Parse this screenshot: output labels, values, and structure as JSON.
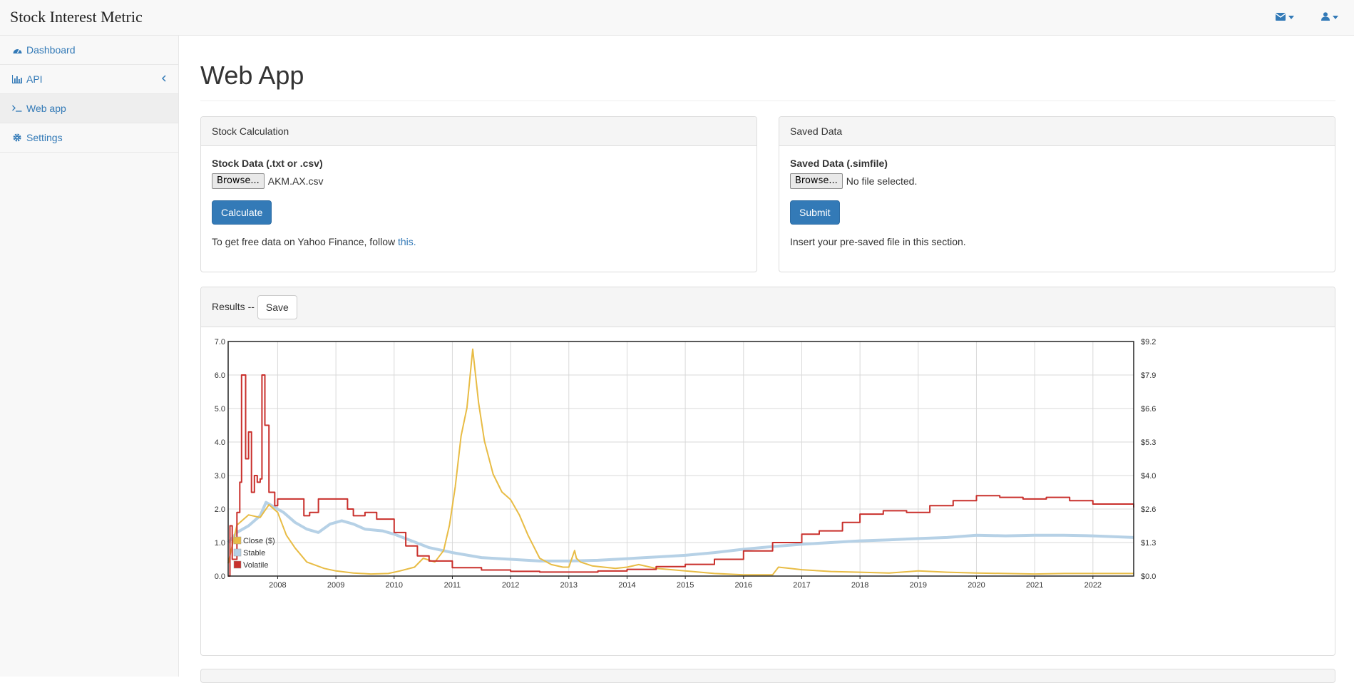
{
  "app": {
    "brand": "Stock Interest Metric"
  },
  "navbar": {
    "mail_icon": "envelope-icon",
    "user_icon": "user-icon"
  },
  "sidebar": {
    "items": [
      {
        "label": "Dashboard",
        "icon": "dashboard-icon"
      },
      {
        "label": "API",
        "icon": "bar-chart-icon"
      },
      {
        "label": "Web app",
        "icon": "terminal-icon"
      },
      {
        "label": "Settings",
        "icon": "gear-icon"
      }
    ]
  },
  "page": {
    "title": "Web App"
  },
  "stock_panel": {
    "heading": "Stock Calculation",
    "field_label": "Stock Data (.txt or .csv)",
    "browse_label": "Browse...",
    "file_name": "AKM.AX.csv",
    "button_label": "Calculate",
    "help_text": "To get free data on Yahoo Finance, follow ",
    "help_link": "this."
  },
  "saved_panel": {
    "heading": "Saved Data",
    "field_label": "Saved Data (.simfile)",
    "browse_label": "Browse...",
    "file_name": "No file selected.",
    "button_label": "Submit",
    "help_text": "Insert your pre-saved file in this section."
  },
  "results": {
    "heading": "Results --",
    "save_label": "Save"
  },
  "colors": {
    "close": "#e8bc45",
    "stable": "#b6d1e6",
    "volatile": "#c9302c",
    "link": "#337ab7"
  },
  "chart_data": {
    "type": "line",
    "x_ticks": [
      "2008",
      "2009",
      "2010",
      "2011",
      "2012",
      "2013",
      "2014",
      "2015",
      "2016",
      "2017",
      "2018",
      "2019",
      "2020",
      "2021",
      "2022"
    ],
    "xlim": [
      2007.15,
      2022.7
    ],
    "y_left_ticks": [
      "0.0",
      "1.0",
      "2.0",
      "3.0",
      "4.0",
      "5.0",
      "6.0",
      "7.0"
    ],
    "ylim_left": [
      0,
      7
    ],
    "y_right_ticks": [
      "$0.0",
      "$1.3",
      "$2.6",
      "$4.0",
      "$5.3",
      "$6.6",
      "$7.9",
      "$9.2"
    ],
    "ylim_right": [
      0,
      9.2
    ],
    "grid": true,
    "legend_position": "bottom-left",
    "series": [
      {
        "name": "Close ($)",
        "axis": "right",
        "x": [
          2007.15,
          2007.3,
          2007.5,
          2007.7,
          2007.85,
          2008.0,
          2008.15,
          2008.3,
          2008.5,
          2008.8,
          2009.0,
          2009.3,
          2009.6,
          2009.9,
          2010.1,
          2010.35,
          2010.5,
          2010.7,
          2010.85,
          2010.95,
          2011.05,
          2011.15,
          2011.25,
          2011.35,
          2011.45,
          2011.55,
          2011.7,
          2011.85,
          2012.0,
          2012.15,
          2012.3,
          2012.5,
          2012.7,
          2012.9,
          2013.0,
          2013.1,
          2013.13,
          2013.2,
          2013.4,
          2013.6,
          2013.8,
          2014.0,
          2014.2,
          2014.5,
          2015.0,
          2015.5,
          2016.0,
          2016.5,
          2016.6,
          2016.8,
          2017.0,
          2017.5,
          2018.0,
          2018.5,
          2019.0,
          2019.5,
          2020.0,
          2020.5,
          2021.0,
          2021.5,
          2022.0,
          2022.7
        ],
        "y": [
          0.5,
          2.0,
          2.4,
          2.3,
          2.8,
          2.5,
          1.6,
          1.1,
          0.55,
          0.3,
          0.2,
          0.12,
          0.08,
          0.1,
          0.2,
          0.35,
          0.7,
          0.55,
          1.0,
          2.0,
          3.5,
          5.5,
          6.6,
          8.9,
          6.8,
          5.3,
          4.0,
          3.3,
          3.0,
          2.4,
          1.6,
          0.7,
          0.45,
          0.35,
          0.35,
          1.0,
          0.7,
          0.55,
          0.4,
          0.35,
          0.3,
          0.35,
          0.45,
          0.3,
          0.2,
          0.1,
          0.05,
          0.05,
          0.35,
          0.3,
          0.25,
          0.18,
          0.15,
          0.12,
          0.2,
          0.15,
          0.12,
          0.1,
          0.08,
          0.1,
          0.1,
          0.1
        ]
      },
      {
        "name": "Stable",
        "axis": "left",
        "x": [
          2007.15,
          2007.3,
          2007.5,
          2007.7,
          2007.8,
          2007.9,
          2008.1,
          2008.3,
          2008.5,
          2008.7,
          2008.9,
          2009.1,
          2009.3,
          2009.5,
          2009.8,
          2010.0,
          2010.3,
          2010.6,
          2011.0,
          2011.5,
          2012.0,
          2012.5,
          2013.0,
          2013.5,
          2014.0,
          2014.5,
          2015.0,
          2015.5,
          2016.0,
          2016.5,
          2017.0,
          2017.5,
          2018.0,
          2018.5,
          2019.0,
          2019.5,
          2020.0,
          2020.5,
          2021.0,
          2021.5,
          2022.0,
          2022.7
        ],
        "y": [
          1.0,
          1.3,
          1.5,
          1.8,
          2.2,
          2.1,
          1.9,
          1.6,
          1.4,
          1.3,
          1.55,
          1.65,
          1.55,
          1.4,
          1.35,
          1.25,
          1.05,
          0.85,
          0.7,
          0.55,
          0.5,
          0.45,
          0.45,
          0.47,
          0.52,
          0.57,
          0.62,
          0.7,
          0.8,
          0.88,
          0.95,
          1.0,
          1.05,
          1.08,
          1.12,
          1.15,
          1.22,
          1.2,
          1.22,
          1.22,
          1.2,
          1.15
        ]
      },
      {
        "name": "Volatile",
        "axis": "left",
        "x": [
          2007.15,
          2007.18,
          2007.22,
          2007.3,
          2007.35,
          2007.38,
          2007.45,
          2007.5,
          2007.55,
          2007.6,
          2007.65,
          2007.7,
          2007.73,
          2007.78,
          2007.85,
          2007.95,
          2008.0,
          2008.2,
          2008.45,
          2008.55,
          2008.7,
          2008.9,
          2009.2,
          2009.3,
          2009.5,
          2009.7,
          2010.0,
          2010.2,
          2010.4,
          2010.6,
          2011.0,
          2011.5,
          2012.0,
          2012.5,
          2013.0,
          2013.5,
          2014.0,
          2014.5,
          2015.0,
          2015.5,
          2016.0,
          2016.5,
          2017.0,
          2017.3,
          2017.7,
          2018.0,
          2018.4,
          2018.8,
          2019.2,
          2019.6,
          2020.0,
          2020.4,
          2020.8,
          2021.2,
          2021.6,
          2022.0,
          2022.7
        ],
        "y": [
          0,
          1.5,
          0.5,
          1.9,
          2.8,
          6.0,
          3.5,
          4.3,
          2.5,
          3.0,
          2.8,
          2.9,
          6.0,
          4.5,
          2.5,
          2.1,
          2.3,
          2.3,
          1.8,
          1.9,
          2.3,
          2.3,
          2.0,
          1.8,
          1.9,
          1.7,
          1.3,
          0.9,
          0.6,
          0.45,
          0.25,
          0.18,
          0.14,
          0.12,
          0.12,
          0.15,
          0.2,
          0.28,
          0.35,
          0.5,
          0.75,
          1.0,
          1.25,
          1.35,
          1.6,
          1.85,
          1.95,
          1.9,
          2.1,
          2.25,
          2.4,
          2.35,
          2.3,
          2.35,
          2.25,
          2.15,
          2.05
        ]
      }
    ]
  }
}
